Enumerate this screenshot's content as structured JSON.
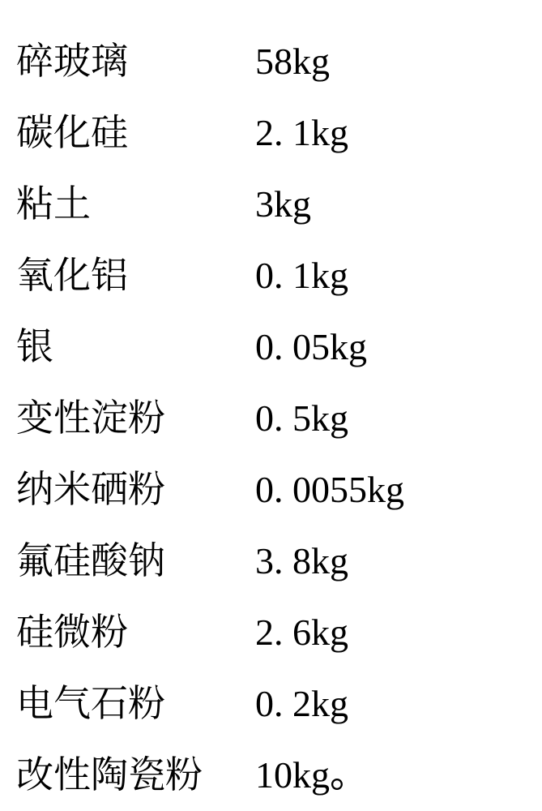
{
  "rows": [
    {
      "label": "碎玻璃",
      "value": "58kg"
    },
    {
      "label": "碳化硅",
      "value": "2. 1kg"
    },
    {
      "label": "粘土",
      "value": "3kg"
    },
    {
      "label": "氧化铝",
      "value": "0. 1kg"
    },
    {
      "label": "银",
      "value": "0. 05kg"
    },
    {
      "label": "变性淀粉",
      "value": "0. 5kg"
    },
    {
      "label": "纳米硒粉",
      "value": "0. 0055kg"
    },
    {
      "label": "氟硅酸钠",
      "value": "3. 8kg"
    },
    {
      "label": "硅微粉",
      "value": "2. 6kg"
    },
    {
      "label": "电气石粉",
      "value": "0. 2kg"
    },
    {
      "label": "改性陶瓷粉",
      "value": "10kg。"
    }
  ]
}
